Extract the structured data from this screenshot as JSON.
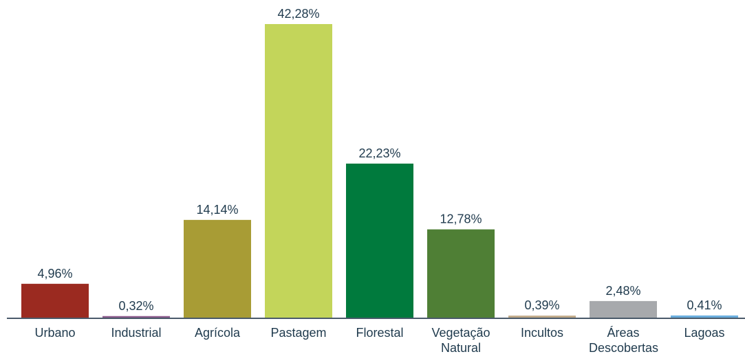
{
  "chart_data": {
    "type": "bar",
    "categories": [
      "Urbano",
      "Industrial",
      "Agrícola",
      "Pastagem",
      "Florestal",
      "Vegetação Natural",
      "Incultos",
      "Áreas Descobertas",
      "Lagoas"
    ],
    "values": [
      4.96,
      0.32,
      14.14,
      42.28,
      22.23,
      12.78,
      0.39,
      2.48,
      0.41
    ],
    "value_labels": [
      "4,96%",
      "0,32%",
      "14,14%",
      "42,28%",
      "22,23%",
      "12,78%",
      "0,39%",
      "2,48%",
      "0,41%"
    ],
    "colors": [
      "#9b2a20",
      "#8c5a8c",
      "#a89c35",
      "#c3d55a",
      "#007a3d",
      "#4f7f35",
      "#c2ab8a",
      "#a7a9ac",
      "#6aaede"
    ]
  }
}
